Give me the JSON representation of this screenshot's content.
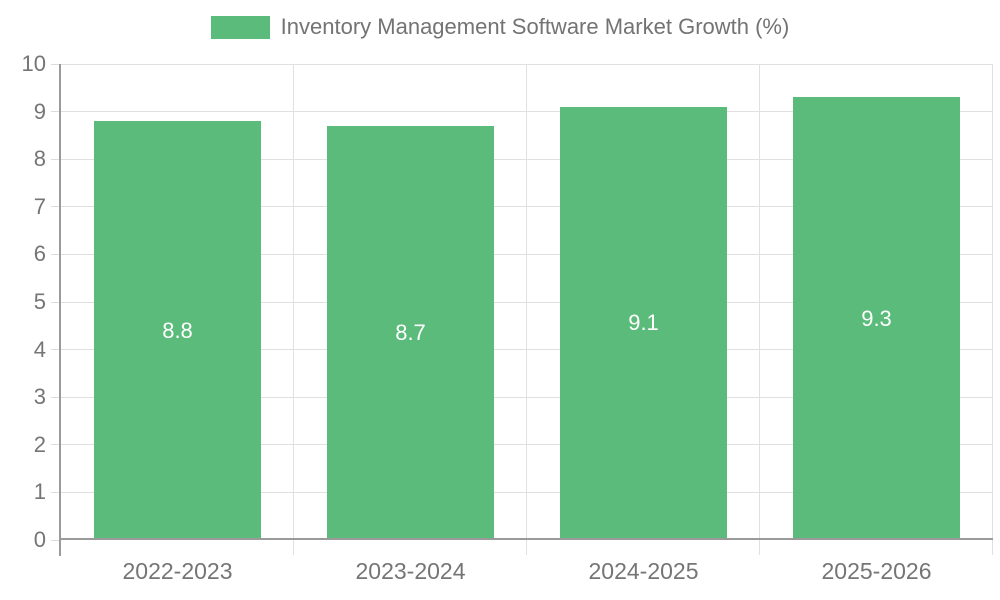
{
  "chart_data": {
    "type": "bar",
    "title": "Inventory Management Software Market Growth (%)",
    "categories": [
      "2022-2023",
      "2023-2024",
      "2024-2025",
      "2025-2026"
    ],
    "values": [
      8.8,
      8.7,
      9.1,
      9.3
    ],
    "value_labels": [
      "8.8",
      "8.7",
      "9.1",
      "9.3"
    ],
    "xlabel": "",
    "ylabel": "",
    "ylim": [
      0,
      10
    ],
    "ytick_step": 1,
    "ytick_labels": [
      "0",
      "1",
      "2",
      "3",
      "4",
      "5",
      "6",
      "7",
      "8",
      "9",
      "10"
    ],
    "grid": true,
    "legend_position": "top-center",
    "colors": {
      "bar": "#5abb7a",
      "grid": "#e0e0e0",
      "axis": "#9a9a9a",
      "tick_text": "#757575",
      "legend_text": "#737373",
      "value_text": "#ffffff"
    }
  }
}
